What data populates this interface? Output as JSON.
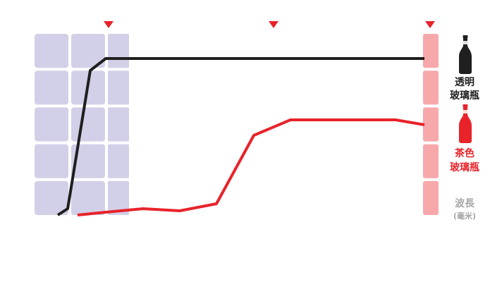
{
  "chart_data": {
    "type": "line",
    "xlabel": "波長",
    "xunit": "(毫米)",
    "series": [
      {
        "name": "透明玻璃瓶",
        "color": "#1f1f1f",
        "points": [
          [
            0.0,
            0.0
          ],
          [
            0.3,
            0.04
          ],
          [
            1.5,
            0.85
          ],
          [
            2.0,
            0.93
          ],
          [
            3.0,
            0.93
          ],
          [
            5.0,
            0.93
          ],
          [
            7.0,
            0.93
          ],
          [
            9.0,
            0.93
          ],
          [
            11.0,
            0.93
          ],
          [
            13.0,
            0.93
          ],
          [
            15.0,
            0.93
          ],
          [
            17.0,
            0.93
          ],
          [
            19.0,
            0.93
          ],
          [
            21.0,
            0.93
          ]
        ]
      },
      {
        "name": "茶色玻璃瓶",
        "color": "#e8232a",
        "points": [
          [
            0.6,
            0.0
          ],
          [
            3.0,
            0.03
          ],
          [
            4.6,
            0.04
          ],
          [
            6.0,
            0.03
          ],
          [
            8.0,
            0.07
          ],
          [
            10.0,
            0.5
          ],
          [
            12.0,
            0.6
          ],
          [
            14.0,
            0.6
          ],
          [
            16.0,
            0.6
          ],
          [
            18.0,
            0.6
          ],
          [
            20.0,
            0.6
          ],
          [
            21.0,
            0.57
          ]
        ]
      }
    ],
    "xlim": [
      0,
      21
    ],
    "ylim": [
      0,
      1
    ],
    "bands": [
      {
        "from": 0,
        "to": 4,
        "color": "#d2d0e8"
      },
      {
        "from": 20.2,
        "to": 21,
        "color": "#f7a8aa"
      }
    ],
    "markers_x": [
      2.5,
      11.5,
      21
    ],
    "marker_color": "#e8232a",
    "grid_rows": 5,
    "grid_cols": 3
  },
  "legend": {
    "clear_label_line1": "透明",
    "clear_label_line2": "玻璃瓶",
    "amber_label_line1": "茶色",
    "amber_label_line2": "玻璃瓶",
    "axis_label": "波長",
    "axis_unit": "(毫米)",
    "clear_color": "#1f1f1f",
    "amber_color": "#e8232a",
    "axis_color": "#a8a8a8",
    "clear_bottle_icon": "clear-bottle-icon",
    "amber_bottle_icon": "amber-bottle-icon"
  }
}
